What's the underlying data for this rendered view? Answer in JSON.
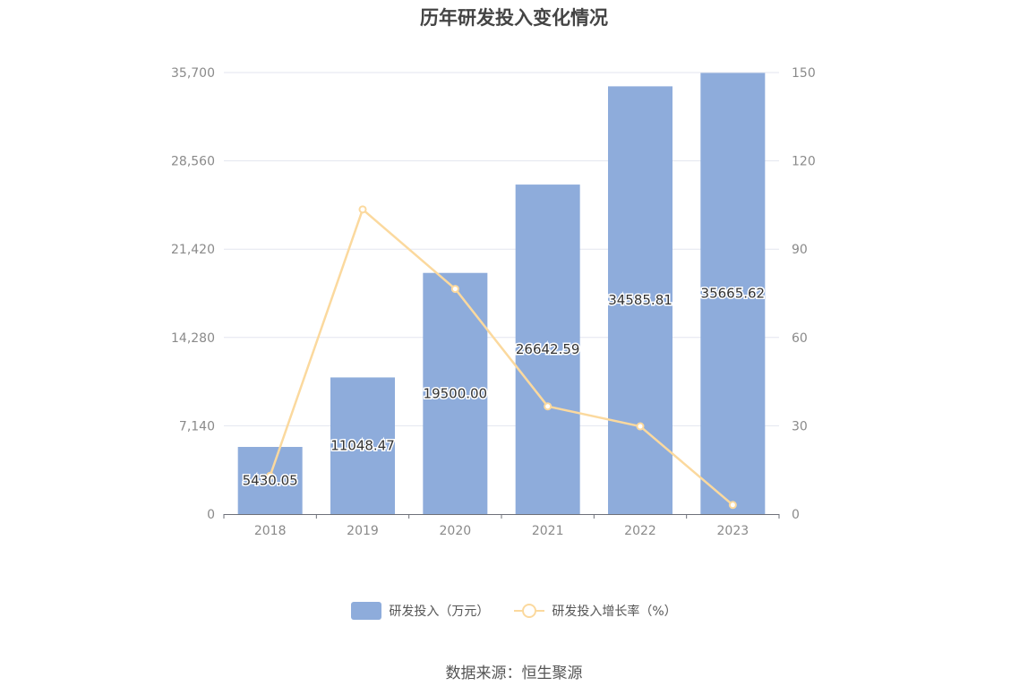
{
  "chart_data": {
    "type": "bar",
    "title": "历年研发投入变化情况",
    "categories": [
      "2018",
      "2019",
      "2020",
      "2021",
      "2022",
      "2023"
    ],
    "series": [
      {
        "name": "研发投入（万元）",
        "type": "bar",
        "axis": "left",
        "values": [
          5430.05,
          11048.47,
          19500.0,
          26642.59,
          34585.81,
          35665.62
        ],
        "labels": [
          "5430.05",
          "11048.47",
          "19500.00",
          "26642.59",
          "34585.81",
          "35665.62"
        ],
        "color": "#8eacdb"
      },
      {
        "name": "研发投入增长率（%）",
        "type": "line",
        "axis": "right",
        "values": [
          13.0,
          103.5,
          76.5,
          36.6,
          29.8,
          3.1
        ],
        "color": "#fbd99e"
      }
    ],
    "y_left": {
      "ylim": [
        0,
        35700
      ],
      "ticks": [
        "0",
        "7,140",
        "14,280",
        "21,420",
        "28,560",
        "35,700"
      ]
    },
    "y_right": {
      "ylim": [
        0,
        150
      ],
      "ticks": [
        "0",
        "30",
        "60",
        "90",
        "120",
        "150"
      ]
    },
    "grid": true,
    "legend": "bottom-center"
  },
  "source_text": "数据来源：恒生聚源"
}
